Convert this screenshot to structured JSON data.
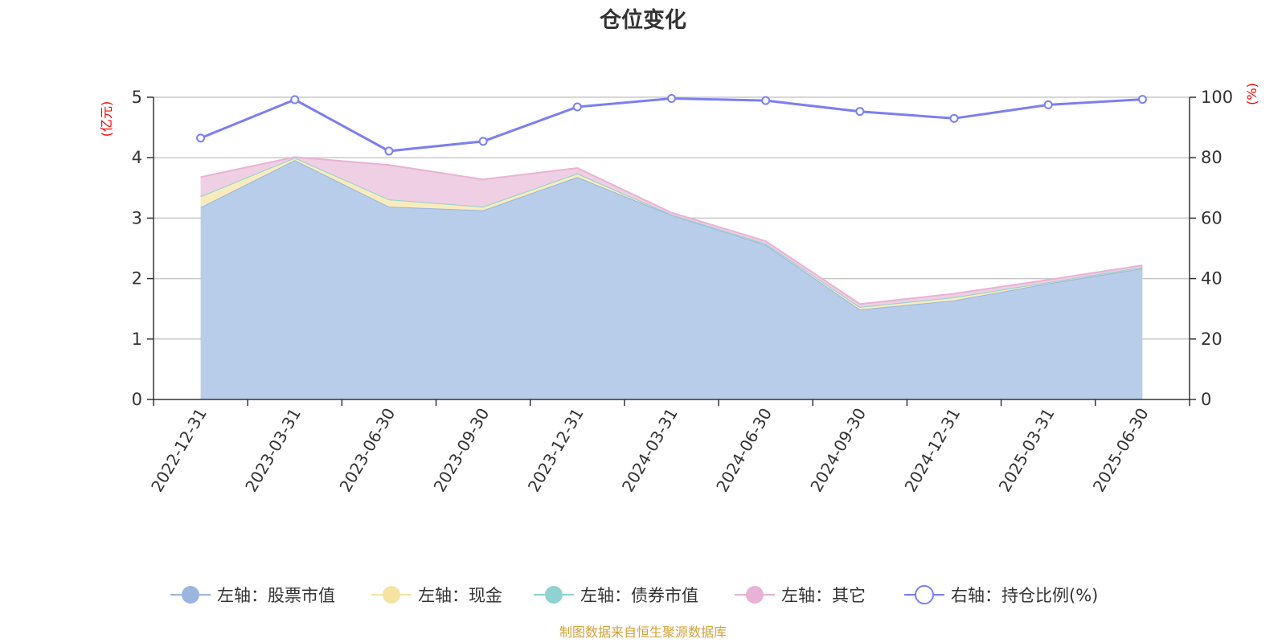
{
  "chart_data": {
    "type": "area",
    "title": "仓位变化",
    "left_axis_unit": "(亿元)",
    "right_axis_unit": "(%)",
    "ylim_left": [
      0,
      5
    ],
    "yticks_left": [
      "0",
      "1",
      "2",
      "3",
      "4",
      "5"
    ],
    "ylim_right": [
      0,
      100
    ],
    "yticks_right": [
      "0",
      "20",
      "40",
      "60",
      "80",
      "100"
    ],
    "grid": true,
    "legend_position": "bottom",
    "x": [
      "2022-12-31",
      "2023-03-31",
      "2023-06-30",
      "2023-09-30",
      "2023-12-31",
      "2024-03-31",
      "2024-06-30",
      "2024-09-30",
      "2024-12-31",
      "2025-03-31",
      "2025-06-30"
    ],
    "series": [
      {
        "name": "左轴：股票市值",
        "axis": "left",
        "type": "area",
        "stacked": true,
        "color": "#9bb5e0",
        "fill": "#b8cdea",
        "values": [
          3.18,
          3.96,
          3.19,
          3.13,
          3.68,
          3.05,
          2.56,
          1.49,
          1.64,
          1.92,
          2.17
        ]
      },
      {
        "name": "左轴：现金",
        "axis": "left",
        "type": "area",
        "stacked": true,
        "color": "#f6e3a1",
        "fill": "#f8ecbc",
        "values": [
          0.18,
          0.04,
          0.12,
          0.06,
          0.06,
          0.01,
          0.02,
          0.04,
          0.05,
          0.02,
          0.02
        ]
      },
      {
        "name": "左轴：债券市值",
        "axis": "left",
        "type": "area",
        "stacked": true,
        "color": "#8fd3d0",
        "fill": "#b7e3e1",
        "values": [
          0,
          0,
          0,
          0,
          0,
          0,
          0,
          0,
          0,
          0,
          0
        ]
      },
      {
        "name": "左轴：其它",
        "axis": "left",
        "type": "area",
        "stacked": true,
        "color": "#e8b2d6",
        "fill": "#efcfe3",
        "values": [
          0.32,
          0.01,
          0.57,
          0.45,
          0.09,
          0.03,
          0.04,
          0.05,
          0.06,
          0.04,
          0.03
        ]
      },
      {
        "name": "右轴：持仓比例(%)",
        "axis": "right",
        "type": "line",
        "color": "#7a7ff0",
        "values": [
          86.5,
          99.2,
          82.2,
          85.4,
          96.8,
          99.6,
          98.9,
          95.3,
          93.0,
          97.5,
          99.3
        ]
      }
    ]
  },
  "colors": {
    "axis": "#333333",
    "grid": "#c8c8c8",
    "unit_label": "#ff0000",
    "source": "#d4a23a"
  },
  "source_text": "制图数据来自恒生聚源数据库"
}
